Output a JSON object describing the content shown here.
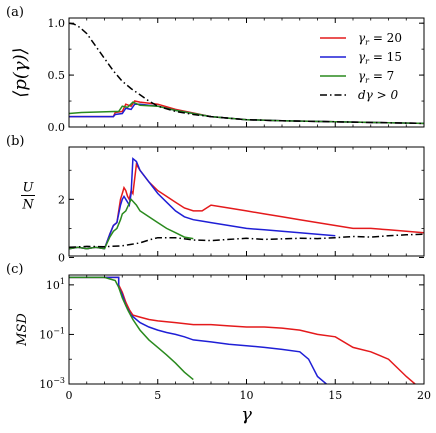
{
  "chart_data": [
    {
      "type": "line",
      "panel_label": "(a)",
      "ylabel": "⟨p(γ)⟩",
      "xlim": [
        0,
        20
      ],
      "ylim": [
        0,
        1.05
      ],
      "yscale": "linear",
      "yticks": [
        {
          "value": 0.0,
          "label": "0.0"
        },
        {
          "value": 0.5,
          "label": "0.5"
        },
        {
          "value": 1.0,
          "label": "1.0"
        }
      ],
      "legend": {
        "placement": "top-right"
      },
      "series": [
        {
          "name": "γr = 20",
          "color": "#e41a1c",
          "style": "solid",
          "x": [
            0,
            2.5,
            2.6,
            3.0,
            3.2,
            3.5,
            3.7,
            4.0,
            5,
            6,
            8,
            10,
            12,
            15,
            18,
            20
          ],
          "y": [
            0.1,
            0.1,
            0.14,
            0.15,
            0.22,
            0.2,
            0.25,
            0.24,
            0.22,
            0.17,
            0.1,
            0.07,
            0.06,
            0.05,
            0.04,
            0.035
          ]
        },
        {
          "name": "γr = 15",
          "color": "#1f1fd6",
          "style": "solid",
          "x": [
            0,
            2.5,
            2.6,
            3.0,
            3.2,
            3.5,
            3.7,
            4.0,
            5,
            6,
            8,
            10,
            12,
            15,
            18,
            20
          ],
          "y": [
            0.1,
            0.1,
            0.12,
            0.13,
            0.18,
            0.17,
            0.22,
            0.22,
            0.2,
            0.16,
            0.1,
            0.07,
            0.06,
            0.05,
            0.04,
            0.035
          ]
        },
        {
          "name": "γr = 7",
          "color": "#2a8a1e",
          "style": "solid",
          "x": [
            0,
            0.7,
            2.8,
            3.0,
            3.3,
            3.6,
            4.0,
            5,
            6,
            7,
            8,
            10,
            12,
            15,
            18,
            20
          ],
          "y": [
            0.13,
            0.14,
            0.15,
            0.2,
            0.19,
            0.24,
            0.21,
            0.2,
            0.16,
            0.13,
            0.1,
            0.07,
            0.06,
            0.05,
            0.04,
            0.035
          ]
        },
        {
          "name": "dγ > 0",
          "color": "#000000",
          "style": "dashdot",
          "x": [
            0,
            0.3,
            0.6,
            1.0,
            1.5,
            2.0,
            2.5,
            3.0,
            3.5,
            4.0,
            4.5,
            5,
            6,
            7,
            8,
            10,
            12,
            15,
            18,
            20
          ],
          "y": [
            1.0,
            0.99,
            0.96,
            0.9,
            0.78,
            0.66,
            0.54,
            0.44,
            0.37,
            0.31,
            0.25,
            0.2,
            0.15,
            0.12,
            0.1,
            0.07,
            0.06,
            0.05,
            0.04,
            0.035
          ]
        }
      ]
    },
    {
      "type": "line",
      "panel_label": "(b)",
      "ylabel_num": "U",
      "ylabel_den": "N",
      "xlim": [
        0,
        20
      ],
      "ylim": [
        0.05,
        3.8
      ],
      "yscale": "linear",
      "yticks": [
        {
          "value": 0,
          "label": "0"
        },
        {
          "value": 2,
          "label": "2"
        }
      ],
      "series": [
        {
          "name": "γr = 20",
          "color": "#e41a1c",
          "style": "solid",
          "x": [
            0,
            0.5,
            1.0,
            1.5,
            2.0,
            2.3,
            2.5,
            2.7,
            2.9,
            3.0,
            3.1,
            3.2,
            3.3,
            3.4,
            3.5,
            3.6,
            3.8,
            4.0,
            4.5,
            5.0,
            5.5,
            6.0,
            6.5,
            7.0,
            7.5,
            8.0,
            9.0,
            10.0,
            11.0,
            12.0,
            13.0,
            14.0,
            15.0,
            16.0,
            17.0,
            18.0,
            19.0,
            20.0
          ],
          "y": [
            0.3,
            0.35,
            0.3,
            0.35,
            0.3,
            0.8,
            1.1,
            1.2,
            2.0,
            2.2,
            2.4,
            2.3,
            2.1,
            2.0,
            2.3,
            2.2,
            3.2,
            3.0,
            2.6,
            2.3,
            2.1,
            1.9,
            1.7,
            1.6,
            1.6,
            1.8,
            1.7,
            1.6,
            1.5,
            1.4,
            1.3,
            1.2,
            1.1,
            1.0,
            1.0,
            0.95,
            0.9,
            0.85
          ]
        },
        {
          "name": "γr = 15",
          "color": "#1f1fd6",
          "style": "solid",
          "x": [
            0,
            0.5,
            1.0,
            1.5,
            2.0,
            2.3,
            2.5,
            2.7,
            2.9,
            3.0,
            3.1,
            3.2,
            3.3,
            3.4,
            3.5,
            3.6,
            3.8,
            4.0,
            4.5,
            5.0,
            5.5,
            6.0,
            6.5,
            7.0,
            7.5,
            8.0,
            9.0,
            10.0,
            11.0,
            12.0,
            13.0,
            14.0,
            15.0
          ],
          "y": [
            0.3,
            0.35,
            0.3,
            0.35,
            0.3,
            0.8,
            1.1,
            1.2,
            1.8,
            2.0,
            2.1,
            2.0,
            1.9,
            1.8,
            2.2,
            3.4,
            3.3,
            3.0,
            2.6,
            2.2,
            1.9,
            1.6,
            1.4,
            1.3,
            1.25,
            1.2,
            1.1,
            1.0,
            0.95,
            0.9,
            0.85,
            0.8,
            0.75
          ]
        },
        {
          "name": "γr = 7",
          "color": "#2a8a1e",
          "style": "solid",
          "x": [
            0,
            0.5,
            1.0,
            1.5,
            2.0,
            2.3,
            2.5,
            2.7,
            2.9,
            3.0,
            3.2,
            3.5,
            3.8,
            4.0,
            4.5,
            5.0,
            5.5,
            6.0,
            6.5,
            7.0
          ],
          "y": [
            0.3,
            0.35,
            0.3,
            0.35,
            0.3,
            0.7,
            0.9,
            1.0,
            1.3,
            1.5,
            1.6,
            2.0,
            1.8,
            1.6,
            1.4,
            1.2,
            1.0,
            0.85,
            0.7,
            0.65
          ]
        },
        {
          "name": "dγ > 0",
          "color": "#000000",
          "style": "dashdot",
          "x": [
            0,
            1,
            2,
            3,
            3.5,
            4.0,
            4.5,
            5.0,
            6.0,
            7.0,
            8.0,
            9.0,
            10.0,
            11.0,
            12.0,
            13.0,
            14.0,
            15.0,
            16.0,
            17.0,
            18.0,
            19.0,
            20.0
          ],
          "y": [
            0.35,
            0.38,
            0.37,
            0.4,
            0.45,
            0.5,
            0.6,
            0.68,
            0.68,
            0.6,
            0.58,
            0.62,
            0.66,
            0.62,
            0.64,
            0.66,
            0.65,
            0.68,
            0.72,
            0.7,
            0.75,
            0.78,
            0.8
          ]
        }
      ]
    },
    {
      "type": "line",
      "panel_label": "(c)",
      "ylabel": "MSD",
      "xlabel": "γ",
      "xlim": [
        0,
        20
      ],
      "ylim": [
        0.001,
        25
      ],
      "yscale": "log",
      "xticks": [
        {
          "value": 0,
          "label": "0"
        },
        {
          "value": 5,
          "label": "5"
        },
        {
          "value": 10,
          "label": "10"
        },
        {
          "value": 15,
          "label": "15"
        },
        {
          "value": 20,
          "label": "20"
        }
      ],
      "yticks": [
        {
          "value": 10,
          "base": "10",
          "exp": "1"
        },
        {
          "value": 0.1,
          "base": "10",
          "exp": "−1"
        },
        {
          "value": 0.001,
          "base": "10",
          "exp": "−3"
        }
      ],
      "series": [
        {
          "name": "γr = 20",
          "color": "#e41a1c",
          "style": "solid",
          "x": [
            0,
            1,
            2,
            2.8,
            2.8,
            3.0,
            3.2,
            3.4,
            3.6,
            4.0,
            4.5,
            5.0,
            6.0,
            7.0,
            8.0,
            9.0,
            10.0,
            11.0,
            12.0,
            13.0,
            14.0,
            15.0,
            16.0,
            17.0,
            18.0,
            19.0,
            19.5
          ],
          "y": [
            20,
            20,
            20,
            20,
            10,
            5,
            2,
            1,
            0.6,
            0.5,
            0.4,
            0.35,
            0.3,
            0.25,
            0.25,
            0.22,
            0.2,
            0.2,
            0.18,
            0.15,
            0.1,
            0.08,
            0.03,
            0.02,
            0.01,
            0.002,
            0.001
          ]
        },
        {
          "name": "γr = 15",
          "color": "#1f1fd6",
          "style": "solid",
          "x": [
            0,
            1,
            2,
            2.8,
            2.8,
            3.0,
            3.2,
            3.5,
            4.0,
            4.5,
            5.0,
            5.5,
            6.0,
            6.5,
            7.0,
            8.0,
            9.0,
            10.0,
            11.0,
            12.0,
            13.0,
            13.5,
            14.0,
            14.5
          ],
          "y": [
            20,
            20,
            20,
            20,
            8,
            4,
            1.5,
            0.6,
            0.3,
            0.2,
            0.15,
            0.12,
            0.1,
            0.08,
            0.06,
            0.05,
            0.04,
            0.035,
            0.03,
            0.025,
            0.02,
            0.01,
            0.002,
            0.001
          ]
        },
        {
          "name": "γr = 7",
          "color": "#2a8a1e",
          "style": "solid",
          "x": [
            0,
            1,
            2,
            2.6,
            2.8,
            3.0,
            3.3,
            3.6,
            4.0,
            4.5,
            5.0,
            5.5,
            6.0,
            6.5,
            7.0
          ],
          "y": [
            20,
            20,
            20,
            15,
            8,
            3,
            1,
            0.4,
            0.15,
            0.06,
            0.03,
            0.015,
            0.007,
            0.003,
            0.0015
          ]
        }
      ]
    }
  ]
}
